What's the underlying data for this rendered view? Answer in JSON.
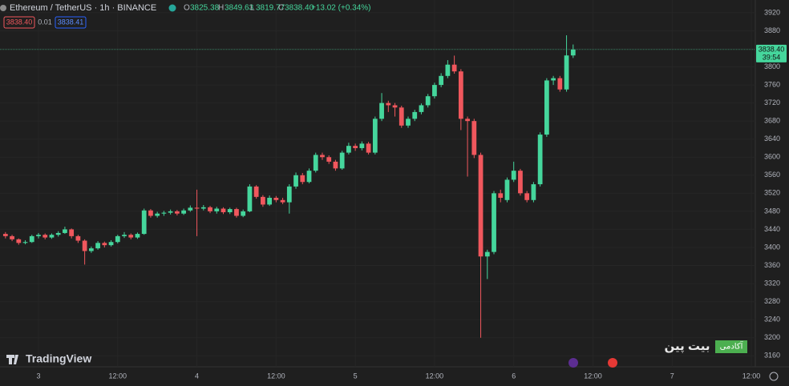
{
  "chart_data": {
    "type": "candlestick",
    "symbol": "Ethereum / TetherUS · 1h · BINANCE",
    "legend": {
      "o_label": "O",
      "o": "3825.38",
      "h_label": "H",
      "h": "3849.63",
      "l_label": "L",
      "l": "3819.77",
      "c_label": "C",
      "c": "3838.40",
      "change": "+13.02 (+0.34%)"
    },
    "bid": "3838.40",
    "spread": "0.01",
    "ask": "3838.41",
    "last_price": {
      "value": 3838.4,
      "label": "3838.40"
    },
    "countdown": "39:54",
    "up_color": "#45d69c",
    "down_color": "#f0575d",
    "x": [
      -5,
      -4,
      -3,
      -2,
      -1,
      0,
      1,
      2,
      3,
      4,
      5,
      6,
      7,
      8,
      9,
      10,
      11,
      12,
      13,
      14,
      15,
      16,
      17,
      18,
      19,
      20,
      21,
      22,
      23,
      24,
      25,
      26,
      27,
      28,
      29,
      30,
      31,
      32,
      33,
      34,
      35,
      36,
      37,
      38,
      39,
      40,
      41,
      42,
      43,
      44,
      45,
      46,
      47,
      48,
      49,
      50,
      51,
      52,
      53,
      54,
      55,
      56,
      57,
      58,
      59,
      60,
      61,
      62,
      63,
      64,
      65,
      66,
      67,
      68,
      69,
      70,
      71,
      72,
      73,
      74,
      75,
      76,
      77,
      78,
      79,
      80,
      81
    ],
    "open": [
      3430,
      3425,
      3418,
      3410,
      3412,
      3425,
      3428,
      3422,
      3428,
      3432,
      3440,
      3425,
      3415,
      3392,
      3398,
      3410,
      3405,
      3412,
      3425,
      3428,
      3422,
      3430,
      3482,
      3470,
      3475,
      3477,
      3480,
      3475,
      3482,
      3488,
      3486,
      3489,
      3480,
      3486,
      3478,
      3485,
      3470,
      3480,
      3535,
      3512,
      3495,
      3510,
      3505,
      3500,
      3535,
      3560,
      3545,
      3570,
      3605,
      3600,
      3590,
      3575,
      3610,
      3625,
      3620,
      3630,
      3610,
      3685,
      3720,
      3715,
      3710,
      3670,
      3685,
      3700,
      3715,
      3735,
      3760,
      3780,
      3805,
      3790,
      3685,
      3680,
      3605,
      3380,
      3390,
      3520,
      3505,
      3550,
      3570,
      3520,
      3505,
      3540,
      3650,
      3770,
      3775,
      3750,
      3825.38
    ],
    "high": [
      3434,
      3428,
      3420,
      3416,
      3428,
      3432,
      3431,
      3431,
      3436,
      3446,
      3442,
      3428,
      3418,
      3402,
      3414,
      3413,
      3416,
      3428,
      3434,
      3431,
      3433,
      3486,
      3485,
      3479,
      3481,
      3484,
      3483,
      3486,
      3493,
      3528,
      3494,
      3492,
      3490,
      3489,
      3488,
      3488,
      3484,
      3540,
      3538,
      3516,
      3515,
      3514,
      3510,
      3540,
      3566,
      3565,
      3575,
      3610,
      3610,
      3604,
      3594,
      3614,
      3632,
      3630,
      3635,
      3634,
      3690,
      3742,
      3725,
      3720,
      3714,
      3690,
      3705,
      3719,
      3740,
      3765,
      3786,
      3815,
      3825,
      3795,
      3690,
      3685,
      3610,
      3395,
      3525,
      3528,
      3555,
      3590,
      3574,
      3525,
      3545,
      3655,
      3775,
      3780,
      3780,
      3870,
      3849.63
    ],
    "low": [
      3420,
      3414,
      3406,
      3407,
      3410,
      3420,
      3418,
      3419,
      3424,
      3430,
      3420,
      3410,
      3362,
      3388,
      3395,
      3400,
      3402,
      3409,
      3421,
      3418,
      3419,
      3428,
      3466,
      3466,
      3470,
      3473,
      3471,
      3472,
      3479,
      3425,
      3482,
      3476,
      3475,
      3474,
      3474,
      3466,
      3467,
      3478,
      3508,
      3490,
      3492,
      3500,
      3496,
      3475,
      3530,
      3540,
      3542,
      3566,
      3594,
      3585,
      3570,
      3572,
      3606,
      3614,
      3615,
      3606,
      3606,
      3680,
      3700,
      3690,
      3665,
      3665,
      3680,
      3695,
      3710,
      3730,
      3755,
      3775,
      3785,
      3660,
      3557,
      3598,
      3200,
      3330,
      3385,
      3500,
      3500,
      3545,
      3515,
      3500,
      3500,
      3535,
      3645,
      3760,
      3745,
      3745,
      3819.77
    ],
    "close": [
      3425,
      3418,
      3410,
      3412,
      3425,
      3428,
      3422,
      3428,
      3432,
      3440,
      3425,
      3415,
      3392,
      3398,
      3410,
      3405,
      3412,
      3425,
      3428,
      3422,
      3430,
      3482,
      3470,
      3475,
      3477,
      3480,
      3475,
      3482,
      3488,
      3486,
      3489,
      3480,
      3486,
      3478,
      3485,
      3470,
      3480,
      3535,
      3512,
      3495,
      3510,
      3505,
      3500,
      3535,
      3560,
      3545,
      3570,
      3605,
      3600,
      3590,
      3575,
      3610,
      3625,
      3620,
      3630,
      3610,
      3685,
      3720,
      3715,
      3710,
      3670,
      3685,
      3700,
      3715,
      3735,
      3760,
      3780,
      3805,
      3790,
      3685,
      3680,
      3605,
      3380,
      3390,
      3520,
      3510,
      3550,
      3570,
      3520,
      3505,
      3540,
      3650,
      3770,
      3775,
      3750,
      3825.38,
      3838.4
    ],
    "xlim": [
      -5.83,
      108.6
    ],
    "xticks": [
      {
        "value": 0,
        "label": "3"
      },
      {
        "value": 12,
        "label": "12:00"
      },
      {
        "value": 24,
        "label": "4"
      },
      {
        "value": 36,
        "label": "12:00"
      },
      {
        "value": 48,
        "label": "5"
      },
      {
        "value": 60,
        "label": "12:00"
      },
      {
        "value": 72,
        "label": "6"
      },
      {
        "value": 84,
        "label": "12:00"
      },
      {
        "value": 96,
        "label": "7"
      },
      {
        "value": 108,
        "label": "12:00"
      }
    ],
    "ylim": [
      3135.6,
      3948.2
    ],
    "yticks": [
      3160,
      3200,
      3240,
      3280,
      3320,
      3360,
      3400,
      3440,
      3480,
      3520,
      3560,
      3600,
      3640,
      3680,
      3720,
      3760,
      3800,
      3840,
      3880,
      3920
    ],
    "watermark": "TradingView",
    "brand": "بیت پین",
    "brand_tag": "آکادمی"
  }
}
